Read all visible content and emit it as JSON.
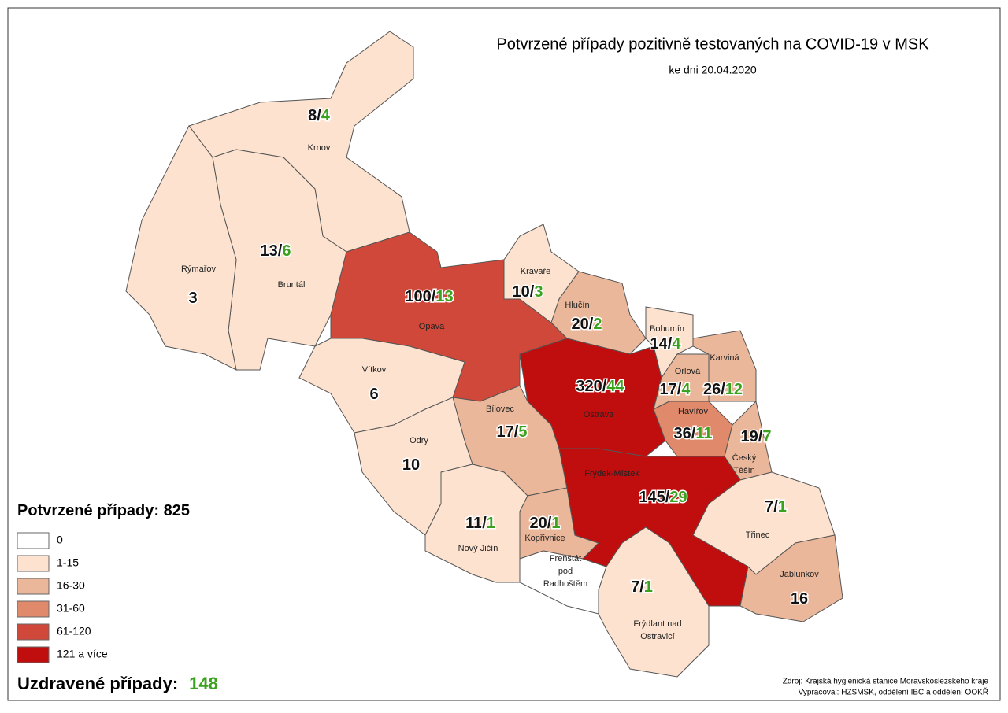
{
  "header": {
    "title": "Potvrzené případy pozitivně testovaných na COVID-19 v MSK",
    "subtitle": "ke dni 20.04.2020"
  },
  "separator": "/",
  "regions": [
    {
      "name": [
        "Krnov"
      ],
      "confirmed": 8,
      "recovered": 4,
      "color": "#fde3cf"
    },
    {
      "name": [
        "Bruntál"
      ],
      "confirmed": 13,
      "recovered": 6,
      "color": "#fde3cf"
    },
    {
      "name": [
        "Rýmařov"
      ],
      "confirmed": 3,
      "color": "#fde3cf"
    },
    {
      "name": [
        "Opava"
      ],
      "confirmed": 100,
      "recovered": 13,
      "color": "#d0483a"
    },
    {
      "name": [
        "Kravaře"
      ],
      "confirmed": 10,
      "recovered": 3,
      "color": "#fde3cf"
    },
    {
      "name": [
        "Hlučín"
      ],
      "confirmed": 20,
      "recovered": 2,
      "color": "#ebb79a"
    },
    {
      "name": [
        "Vítkov"
      ],
      "confirmed": 6,
      "color": "#fde3cf"
    },
    {
      "name": [
        "Bílovec"
      ],
      "confirmed": 17,
      "recovered": 5,
      "color": "#ebb79a"
    },
    {
      "name": [
        "Odry"
      ],
      "confirmed": 10,
      "color": "#fde3cf"
    },
    {
      "name": [
        "Nový Jičín"
      ],
      "confirmed": 11,
      "recovered": 1,
      "color": "#fde3cf"
    },
    {
      "name": [
        "Kopřivnice"
      ],
      "confirmed": 20,
      "recovered": 1,
      "color": "#ebb79a"
    },
    {
      "name": [
        "Frenštát",
        "pod",
        "Radhoštěm"
      ],
      "color": "#ffffff"
    },
    {
      "name": [
        "Ostrava"
      ],
      "confirmed": 320,
      "recovered": 44,
      "color": "#c00d0d"
    },
    {
      "name": [
        "Bohumín"
      ],
      "confirmed": 14,
      "recovered": 4,
      "color": "#fde3cf"
    },
    {
      "name": [
        "Orlová"
      ],
      "confirmed": 17,
      "recovered": 4,
      "color": "#ebb79a"
    },
    {
      "name": [
        "Karviná"
      ],
      "confirmed": 26,
      "recovered": 12,
      "color": "#ebb79a"
    },
    {
      "name": [
        "Havířov"
      ],
      "confirmed": 36,
      "recovered": 11,
      "color": "#e0896b"
    },
    {
      "name": [
        "Český",
        "Těšín"
      ],
      "confirmed": 19,
      "recovered": 7,
      "color": "#ebb79a"
    },
    {
      "name": [
        "Frýdek-Místek"
      ],
      "confirmed": 145,
      "recovered": 29,
      "color": "#c00d0d"
    },
    {
      "name": [
        "Frýdlant nad",
        "Ostravicí"
      ],
      "confirmed": 7,
      "recovered": 1,
      "color": "#fde3cf"
    },
    {
      "name": [
        "Třinec"
      ],
      "confirmed": 7,
      "recovered": 1,
      "color": "#fde3cf"
    },
    {
      "name": [
        "Jablunkov"
      ],
      "confirmed": 16,
      "color": "#ebb79a"
    }
  ],
  "legend": {
    "title": "Potvrzené případy:",
    "total": 825,
    "items": [
      {
        "label": "0",
        "color": "#ffffff"
      },
      {
        "label": "1-15",
        "color": "#fde3cf"
      },
      {
        "label": "16-30",
        "color": "#ebb79a"
      },
      {
        "label": "31-60",
        "color": "#e0896b"
      },
      {
        "label": "61-120",
        "color": "#d0483a"
      },
      {
        "label": "121 a více",
        "color": "#c00d0d"
      }
    ]
  },
  "recovered": {
    "label": "Uzdravené případy:",
    "total": 148
  },
  "source": [
    "Zdroj: Krajská hygienická stanice Moravskoslezského kraje",
    "Vypracoval: HZSMSK, oddělení IBC a oddělení OOKŘ"
  ]
}
